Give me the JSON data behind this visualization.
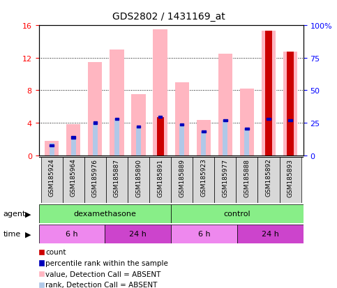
{
  "title": "GDS2802 / 1431169_at",
  "samples": [
    "GSM185924",
    "GSM185964",
    "GSM185976",
    "GSM185887",
    "GSM185890",
    "GSM185891",
    "GSM185889",
    "GSM185923",
    "GSM185977",
    "GSM185888",
    "GSM185892",
    "GSM185893"
  ],
  "value_pink": [
    1.8,
    3.8,
    11.5,
    13.0,
    7.5,
    15.5,
    9.0,
    4.3,
    12.5,
    8.2,
    15.3,
    12.8
  ],
  "rank_lightblue": [
    1.5,
    2.3,
    4.0,
    4.5,
    3.5,
    4.7,
    3.8,
    2.9,
    4.3,
    3.3,
    4.5,
    4.3
  ],
  "count_red": [
    0,
    0,
    0,
    0,
    0,
    4.7,
    0,
    0,
    0,
    0,
    15.3,
    12.8
  ],
  "percentile_blue": [
    1.2,
    2.2,
    4.0,
    4.5,
    3.5,
    4.7,
    3.8,
    2.9,
    4.3,
    3.3,
    4.5,
    4.3
  ],
  "ylim": [
    0,
    16
  ],
  "yticks_left": [
    0,
    4,
    8,
    12,
    16
  ],
  "yticks_right": [
    0,
    25,
    50,
    75,
    100
  ],
  "yticklabels_right": [
    "0",
    "25",
    "50",
    "75",
    "100%"
  ],
  "color_red": "#cc0000",
  "color_pink": "#FFB6C1",
  "color_blue": "#0000bb",
  "color_lightblue": "#b0c8e8",
  "color_green": "#88EE88",
  "color_magenta_light": "#EE88EE",
  "color_magenta_dark": "#CC44CC",
  "color_gray_cell": "#D8D8D8",
  "legend_items": [
    {
      "color": "#cc0000",
      "label": "count"
    },
    {
      "color": "#0000bb",
      "label": "percentile rank within the sample"
    },
    {
      "color": "#FFB6C1",
      "label": "value, Detection Call = ABSENT"
    },
    {
      "color": "#b0c8e8",
      "label": "rank, Detection Call = ABSENT"
    }
  ]
}
